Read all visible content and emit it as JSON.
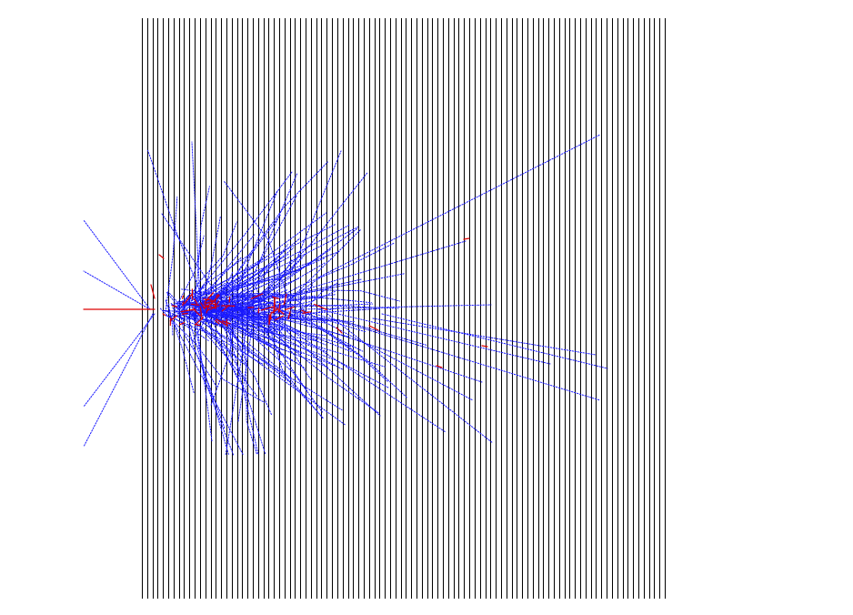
{
  "scene": {
    "type": "particle-shower-event-display",
    "colors": {
      "background": "#ffffff",
      "detector_planes": "#000000",
      "charged_tracks": "#1a1aff",
      "neutral_tracks": "#dd0000"
    },
    "detector": {
      "plane_count": 100
    },
    "shower": {
      "blue_track_count": 230,
      "red_segment_count": 60,
      "random_seed": 7
    }
  }
}
